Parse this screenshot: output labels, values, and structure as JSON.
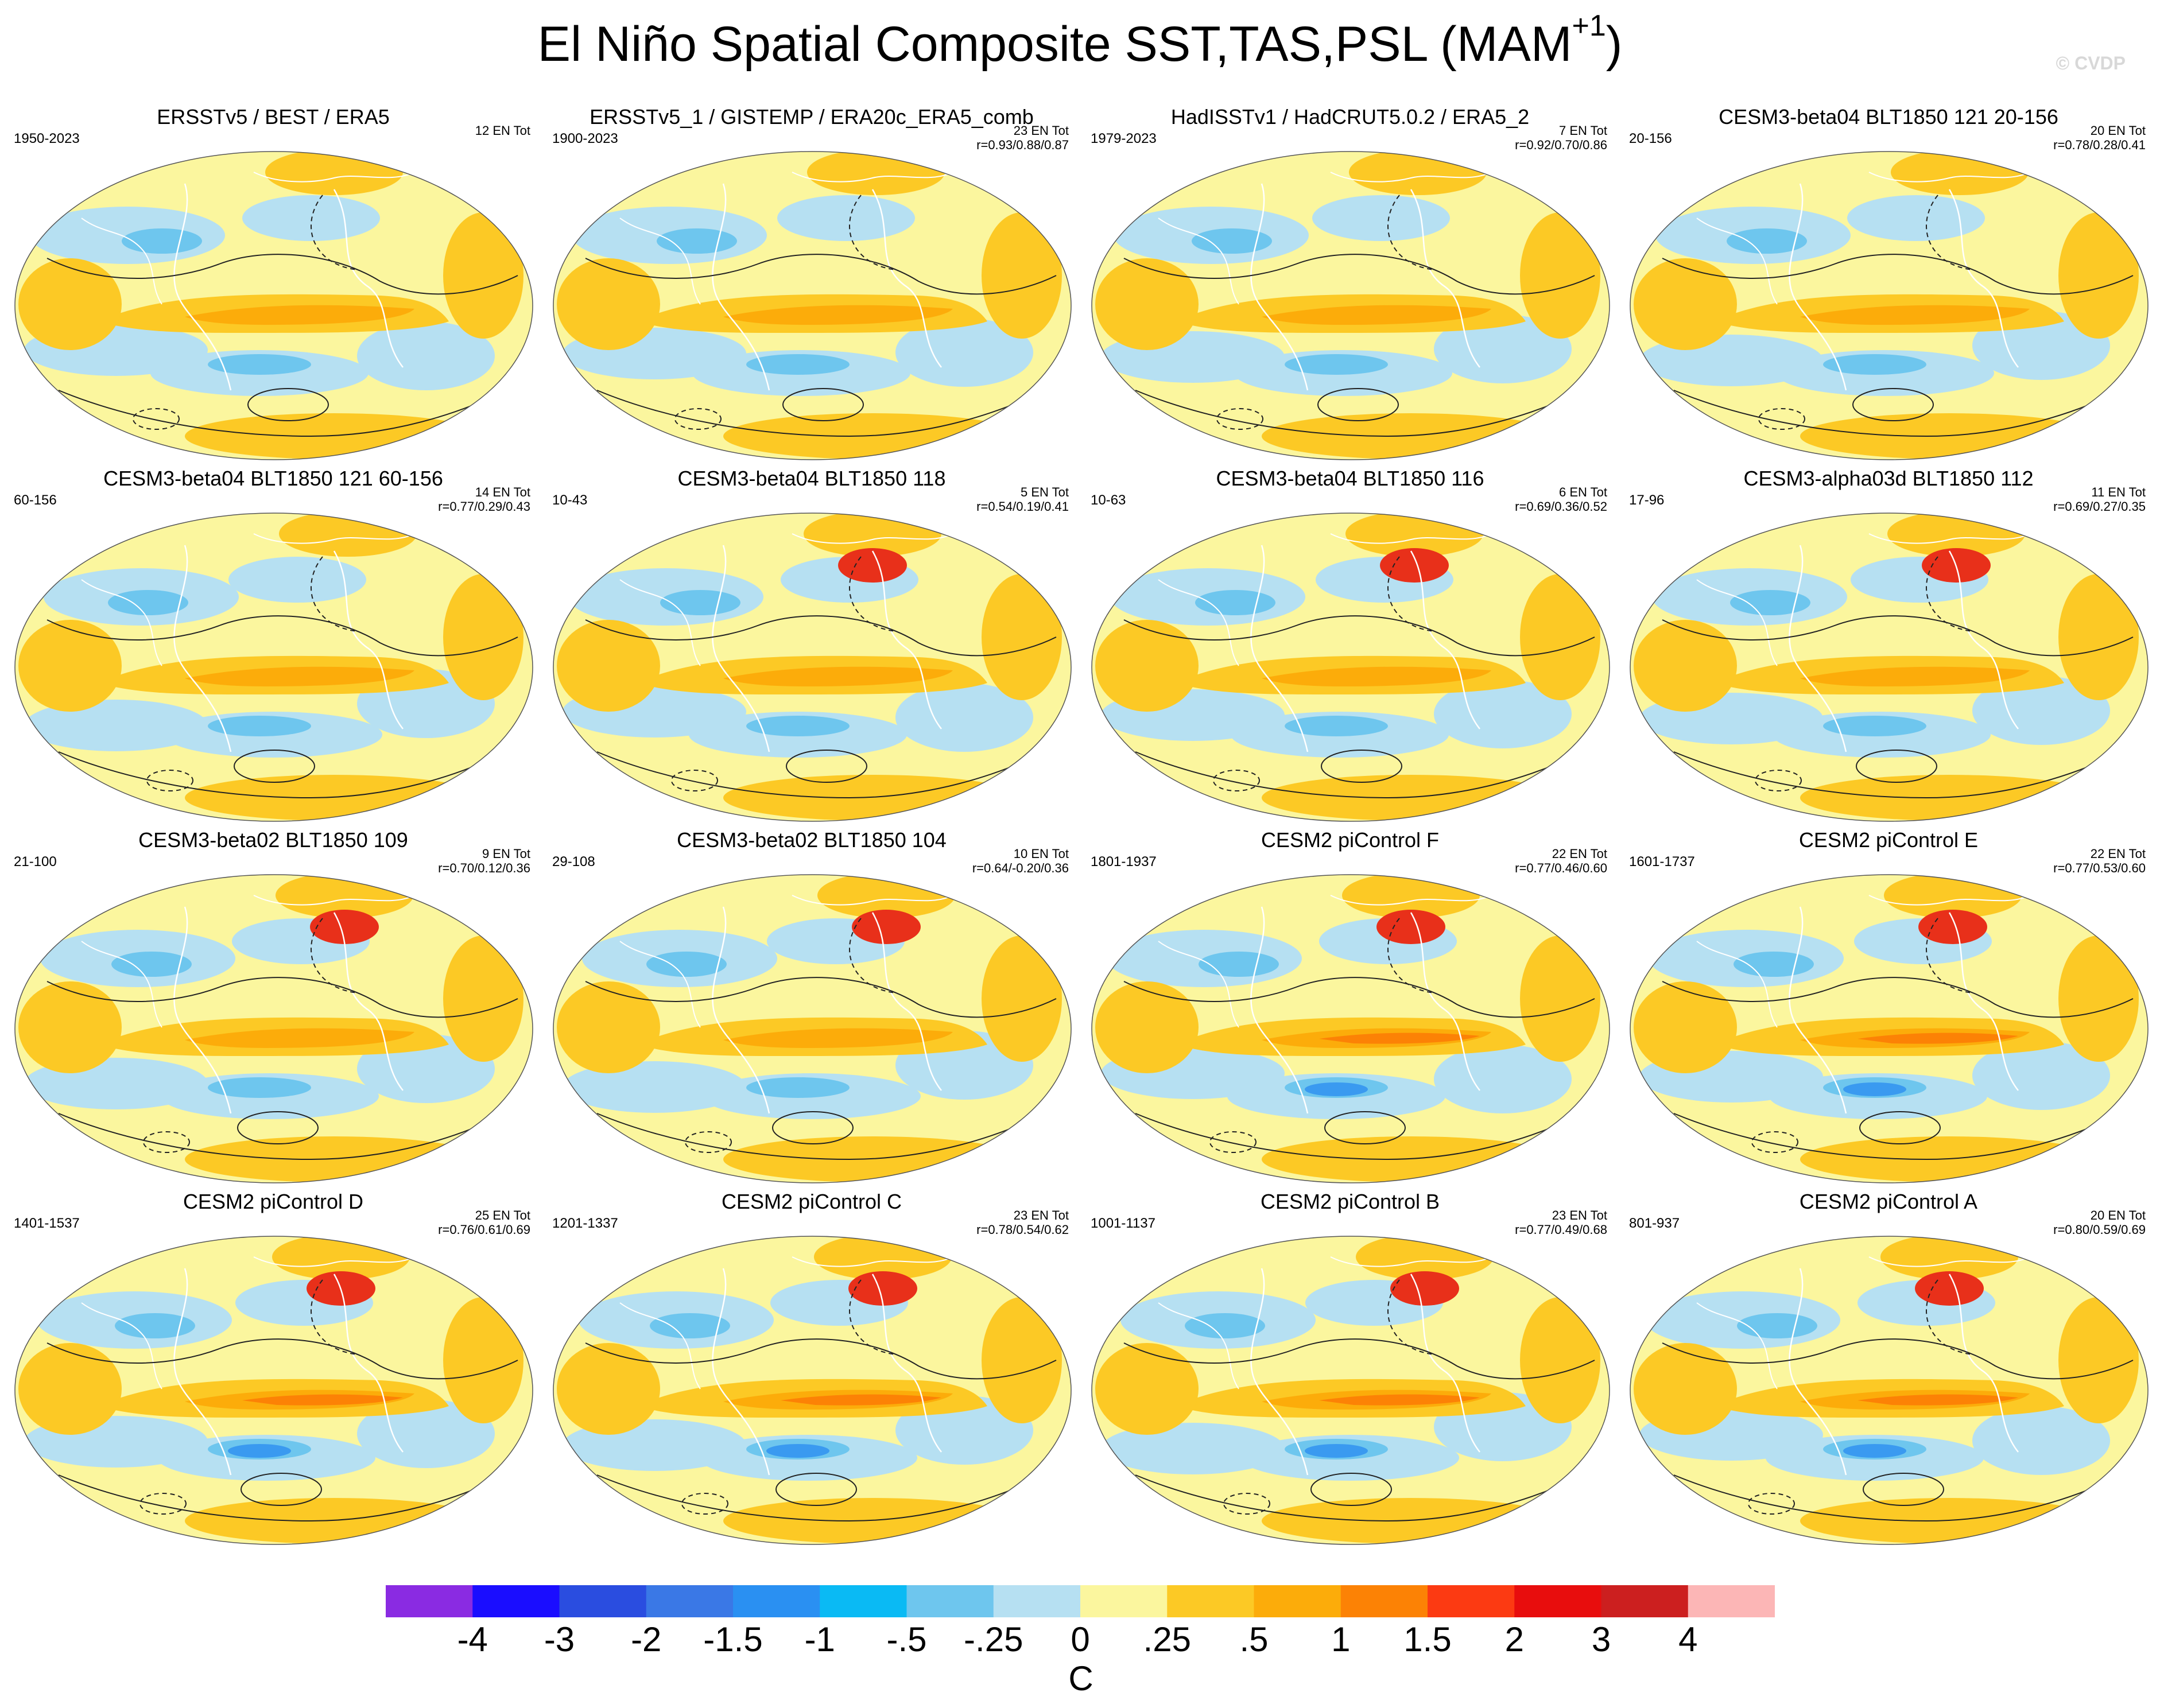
{
  "title_main": "El Niño Spatial Composite SST,TAS,PSL (MAM",
  "title_sup": "+1",
  "title_close": ")",
  "credit": "© CVDP",
  "panels": [
    {
      "title": "ERSSTv5 / BEST / ERA5",
      "period": "1950-2023",
      "entot": "12 EN Tot",
      "corr": ""
    },
    {
      "title": "ERSSTv5_1 / GISTEMP / ERA20c_ERA5_comb",
      "period": "1900-2023",
      "entot": "23 EN Tot",
      "corr": "r=0.93/0.88/0.87"
    },
    {
      "title": "HadISSTv1 / HadCRUT5.0.2 / ERA5_2",
      "period": "1979-2023",
      "entot": "7 EN Tot",
      "corr": "r=0.92/0.70/0.86"
    },
    {
      "title": "CESM3-beta04 BLT1850 121 20-156",
      "period": "20-156",
      "entot": "20 EN Tot",
      "corr": "r=0.78/0.28/0.41"
    },
    {
      "title": "CESM3-beta04 BLT1850 121 60-156",
      "period": "60-156",
      "entot": "14 EN Tot",
      "corr": "r=0.77/0.29/0.43"
    },
    {
      "title": "CESM3-beta04 BLT1850 118",
      "period": "10-43",
      "entot": "5 EN Tot",
      "corr": "r=0.54/0.19/0.41"
    },
    {
      "title": "CESM3-beta04 BLT1850 116",
      "period": "10-63",
      "entot": "6 EN Tot",
      "corr": "r=0.69/0.36/0.52"
    },
    {
      "title": "CESM3-alpha03d BLT1850 112",
      "period": "17-96",
      "entot": "11 EN Tot",
      "corr": "r=0.69/0.27/0.35"
    },
    {
      "title": "CESM3-beta02 BLT1850 109",
      "period": "21-100",
      "entot": "9 EN Tot",
      "corr": "r=0.70/0.12/0.36"
    },
    {
      "title": "CESM3-beta02 BLT1850 104",
      "period": "29-108",
      "entot": "10 EN Tot",
      "corr": "r=0.64/-0.20/0.36"
    },
    {
      "title": "CESM2 piControl F",
      "period": "1801-1937",
      "entot": "22 EN Tot",
      "corr": "r=0.77/0.46/0.60"
    },
    {
      "title": "CESM2 piControl E",
      "period": "1601-1737",
      "entot": "22 EN Tot",
      "corr": "r=0.77/0.53/0.60"
    },
    {
      "title": "CESM2 piControl D",
      "period": "1401-1537",
      "entot": "25 EN Tot",
      "corr": "r=0.76/0.61/0.69"
    },
    {
      "title": "CESM2 piControl C",
      "period": "1201-1337",
      "entot": "23 EN Tot",
      "corr": "r=0.78/0.54/0.62"
    },
    {
      "title": "CESM2 piControl B",
      "period": "1001-1137",
      "entot": "23 EN Tot",
      "corr": "r=0.77/0.49/0.68"
    },
    {
      "title": "CESM2 piControl A",
      "period": "801-937",
      "entot": "20 EN Tot",
      "corr": "r=0.80/0.59/0.69"
    }
  ],
  "colorbar": {
    "colors": [
      "#8a2be2",
      "#1a0dff",
      "#2a4de0",
      "#3a78e6",
      "#2a90f2",
      "#0abaf4",
      "#6ec6ee",
      "#b6e0f2",
      "#fbf69e",
      "#fcc925",
      "#fcac0a",
      "#fc8205",
      "#fc3a12",
      "#e80d0d",
      "#cc1f1f",
      "#fcb6b6"
    ],
    "labels": [
      "-4",
      "-3",
      "-2",
      "-1.5",
      "-1",
      "-.5",
      "-.25",
      "0",
      ".25",
      ".5",
      "1",
      "1.5",
      "2",
      "3",
      "4"
    ],
    "unit": "C"
  },
  "map_palette": {
    "ocean_base": "#fbf69e",
    "warm": "#fcc925",
    "warmer": "#fcac0a",
    "hot": "#fc8205",
    "red": "#e8301a",
    "cool": "#b6e0f2",
    "cold": "#6ec6ee",
    "colder": "#3a9af0",
    "contour": "#222222",
    "coast": "#ffffff"
  }
}
